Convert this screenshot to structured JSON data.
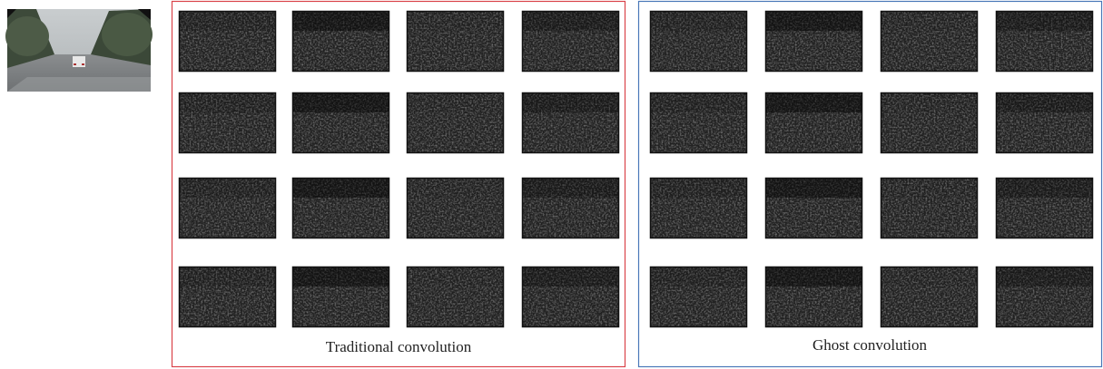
{
  "panels": [
    {
      "label": "Traditional convolution"
    },
    {
      "label": "Ghost convolution"
    }
  ]
}
